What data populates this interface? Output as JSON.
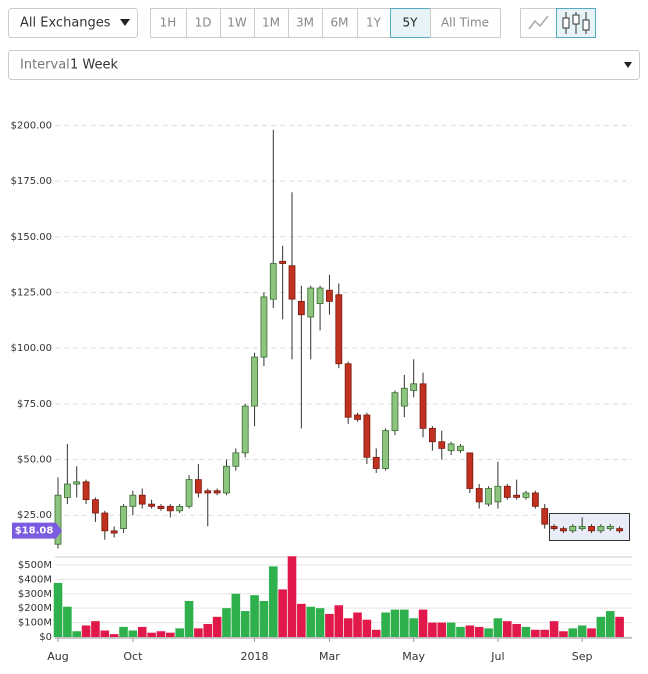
{
  "exchange": "All Exchanges",
  "ranges": [
    "1H",
    "1D",
    "1W",
    "1M",
    "3M",
    "6M",
    "1Y",
    "5Y",
    "All Time"
  ],
  "selected_range": 7,
  "interval_label": "Interval",
  "interval": "1 Week",
  "chart_data": {
    "type": "candlestick",
    "categories": [
      "Aug",
      null,
      null,
      null,
      null,
      null,
      null,
      null,
      "Oct",
      null,
      null,
      null,
      null,
      null,
      null,
      null,
      null,
      null,
      null,
      null,
      null,
      "2018",
      null,
      null,
      null,
      null,
      null,
      null,
      null,
      "Mar",
      null,
      null,
      null,
      null,
      null,
      null,
      null,
      null,
      "May",
      null,
      null,
      null,
      null,
      null,
      null,
      null,
      null,
      "Jul",
      null,
      null,
      null,
      null,
      null,
      null,
      null,
      null,
      "Sep",
      null,
      null,
      null,
      null
    ],
    "open": [
      12,
      33,
      39,
      40,
      32,
      26,
      18,
      19,
      29,
      34,
      30,
      29,
      29,
      27,
      29,
      41,
      36,
      36,
      35,
      47,
      53,
      74,
      96,
      122,
      139,
      137,
      121,
      114,
      120,
      126,
      124,
      93,
      70,
      70,
      51,
      46,
      63,
      74,
      81,
      84,
      64,
      58,
      54,
      54,
      53,
      37,
      30,
      31,
      38,
      34,
      33,
      35,
      28,
      20,
      19,
      18,
      19,
      20,
      18,
      19,
      19
    ],
    "high": [
      42,
      57,
      47,
      41,
      33,
      27,
      20,
      30,
      36,
      37,
      32,
      30,
      30,
      30,
      43,
      48,
      37,
      37,
      50,
      55,
      75,
      98,
      125,
      198,
      146,
      170,
      128,
      128,
      128,
      133,
      129,
      94,
      71,
      71,
      55,
      64,
      81,
      88,
      95,
      89,
      65,
      63,
      58,
      57,
      53,
      39,
      38,
      49,
      39,
      41,
      36,
      36,
      30,
      21,
      20,
      21,
      24,
      21,
      21,
      21,
      20
    ],
    "low": [
      10,
      30,
      33,
      30,
      22,
      14,
      15,
      17,
      25,
      28,
      28,
      27,
      24,
      26,
      28,
      33,
      20,
      34,
      34,
      45,
      51,
      65,
      92,
      118,
      113,
      95,
      64,
      95,
      108,
      115,
      91,
      66,
      67,
      48,
      44,
      45,
      61,
      69,
      78,
      60,
      54,
      50,
      52,
      53,
      35,
      28,
      29,
      28,
      32,
      32,
      32,
      28,
      19,
      18,
      17,
      17,
      18,
      17,
      17,
      18,
      17
    ],
    "close": [
      34,
      39,
      40,
      32,
      26,
      18,
      17,
      29,
      34,
      30,
      29,
      28,
      27,
      29,
      41,
      35,
      35,
      35,
      47,
      53,
      74,
      96,
      123,
      138,
      138,
      122,
      115,
      127,
      127,
      121,
      93,
      69,
      68,
      51,
      46,
      63,
      80,
      82,
      84,
      64,
      58,
      55,
      57,
      56,
      37,
      31,
      37,
      38,
      33,
      33,
      35,
      29,
      21,
      19,
      18,
      20,
      20,
      18,
      20,
      20,
      18
    ],
    "up_color": "#8dc47f",
    "down_color": "#c0311f",
    "ylim": [
      9.4,
      211.4
    ],
    "yticks": [
      {
        "value": 25,
        "label": "$25.00"
      },
      {
        "value": 50,
        "label": "$50.00"
      },
      {
        "value": 75,
        "label": "$75.00"
      },
      {
        "value": 100,
        "label": "$100.00"
      },
      {
        "value": 125,
        "label": "$125.00"
      },
      {
        "value": 150,
        "label": "$150.00"
      },
      {
        "value": 175,
        "label": "$175.00"
      },
      {
        "value": 200,
        "label": "$200.00"
      }
    ],
    "last_price": {
      "value": 18.08,
      "label": "$18.08"
    },
    "volume": [
      375,
      210,
      40,
      80,
      110,
      45,
      20,
      70,
      45,
      70,
      30,
      40,
      30,
      60,
      250,
      60,
      90,
      140,
      200,
      300,
      180,
      290,
      250,
      490,
      330,
      560,
      230,
      210,
      200,
      160,
      220,
      130,
      170,
      120,
      50,
      170,
      190,
      190,
      130,
      190,
      100,
      100,
      100,
      70,
      80,
      70,
      60,
      130,
      110,
      90,
      70,
      50,
      50,
      110,
      40,
      60,
      80,
      60,
      140,
      180,
      140
    ],
    "volume_up_color": "#2eb04d",
    "volume_down_color": "#e0194a",
    "vlim": [
      0,
      555
    ],
    "vticks": [
      {
        "value": 0,
        "label": "$0"
      },
      {
        "value": 100,
        "label": "$100M"
      },
      {
        "value": 200,
        "label": "$200M"
      },
      {
        "value": 300,
        "label": "$300M"
      },
      {
        "value": 400,
        "label": "$400M"
      },
      {
        "value": 500,
        "label": "$500M"
      }
    ],
    "grid": true
  }
}
